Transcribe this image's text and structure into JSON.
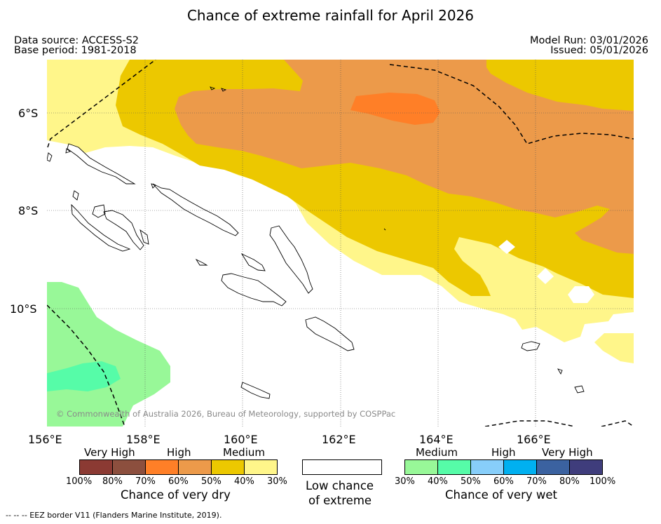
{
  "title": "Chance of extreme rainfall for April 2026",
  "header": {
    "data_source": "Data source: ACCESS-S2",
    "base_period": "Base period: 1981-2018",
    "model_run": "Model Run: 03/01/2026",
    "issued": "Issued: 05/01/2026"
  },
  "map": {
    "lat_labels": [
      "6°S",
      "8°S",
      "10°S"
    ],
    "lon_labels": [
      "156°E",
      "158°E",
      "160°E",
      "162°E",
      "164°E",
      "166°E"
    ],
    "copyright": "© Commonwealth of Australia 2026, Bureau of Meteorology, supported by COSPPac"
  },
  "legend_dry": {
    "categories": [
      "Very High",
      "High",
      "Medium"
    ],
    "percents": [
      "100%",
      "80%",
      "70%",
      "60%",
      "50%",
      "40%",
      "30%"
    ],
    "colors": [
      "#8b3a33",
      "#8c4f3e",
      "#ff7f27",
      "#ec9a4a",
      "#ecc800",
      "#fff68a"
    ],
    "caption": "Chance of very dry"
  },
  "legend_low": {
    "line1": "Low chance",
    "line2": "of extreme"
  },
  "legend_wet": {
    "categories": [
      "Medium",
      "High",
      "Very High"
    ],
    "percents": [
      "30%",
      "40%",
      "50%",
      "60%",
      "70%",
      "80%",
      "100%"
    ],
    "colors": [
      "#98f898",
      "#56fca8",
      "#87cefa",
      "#00b0f0",
      "#3b62a0",
      "#3f3d7c"
    ],
    "caption": "Chance of very wet"
  },
  "footer": "--  --  -- EEZ border V11 (Flanders Marine Institute, 2019)."
}
